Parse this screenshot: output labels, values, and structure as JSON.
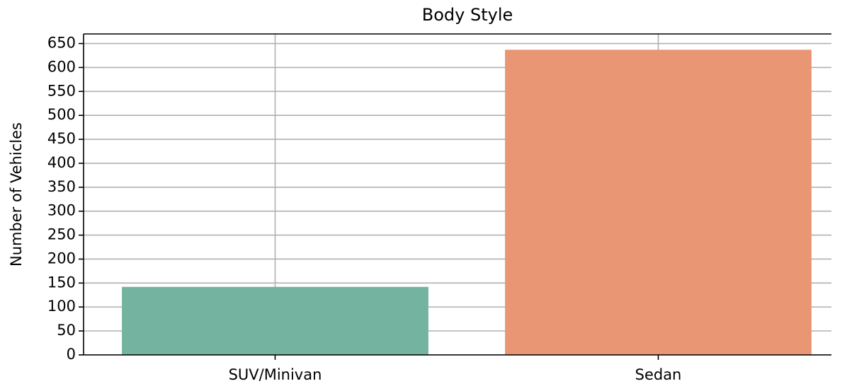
{
  "chart_data": {
    "type": "bar",
    "title": "Body Style",
    "ylabel": "Number of Vehicles",
    "categories": [
      "SUV/Minivan",
      "Sedan"
    ],
    "values": [
      142,
      637
    ],
    "colors": [
      "#73b3a0",
      "#e89673"
    ],
    "ylim": [
      0,
      670
    ],
    "yticks": [
      0,
      50,
      100,
      150,
      200,
      250,
      300,
      350,
      400,
      450,
      500,
      550,
      600,
      650
    ],
    "grid": true
  }
}
